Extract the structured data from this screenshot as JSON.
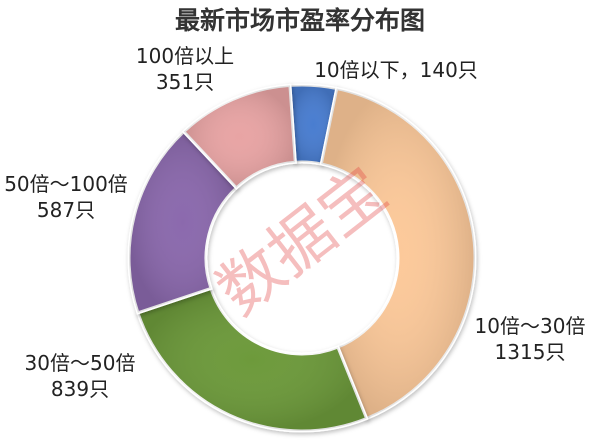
{
  "chart_data": {
    "type": "pie",
    "title": "最新市场市盈率分布图",
    "donut": true,
    "legend": "none",
    "slices": [
      {
        "name": "10倍以下",
        "value": 140,
        "value_label": "140只",
        "label_line1": "10倍以下，140只",
        "label_line2": "",
        "color": "#4a7dd0"
      },
      {
        "name": "10倍～30倍",
        "value": 1315,
        "value_label": "1315只",
        "label_line1": "10倍～30倍",
        "label_line2": "1315只",
        "color": "#fcc99a"
      },
      {
        "name": "30倍～50倍",
        "value": 839,
        "value_label": "839只",
        "label_line1": "30倍～50倍",
        "label_line2": "839只",
        "color": "#6d9a3a"
      },
      {
        "name": "50倍～100倍",
        "value": 587,
        "value_label": "587只",
        "label_line1": "50倍～100倍",
        "label_line2": "587只",
        "color": "#8b69ad"
      },
      {
        "name": "100倍以上",
        "value": 351,
        "value_label": "351只",
        "label_line1": "100倍以上",
        "label_line2": "351只",
        "color": "#e8a4a4"
      }
    ]
  },
  "watermark": "数据宝"
}
